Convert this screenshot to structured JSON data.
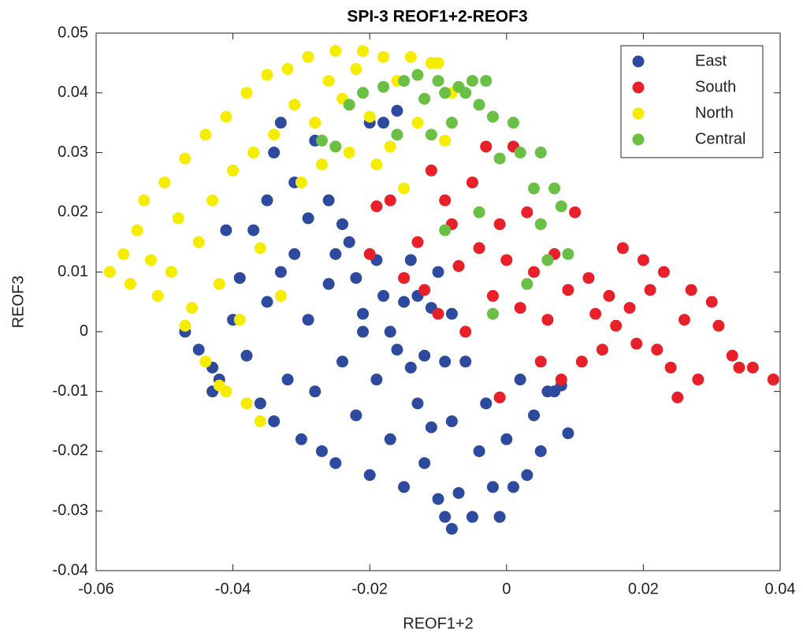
{
  "chart_data": {
    "type": "scatter",
    "title": "SPI-3 REOF1+2-REOF3",
    "x_label": "REOF1+2",
    "y_label": "REOF3",
    "xlim": [
      -0.06,
      0.04
    ],
    "ylim": [
      -0.04,
      0.05
    ],
    "xticks": [
      -0.06,
      -0.04,
      -0.02,
      0,
      0.02,
      0.04
    ],
    "yticks": [
      -0.04,
      -0.03,
      -0.02,
      -0.01,
      0,
      0.01,
      0.02,
      0.03,
      0.04,
      0.05
    ],
    "grid": false,
    "legend_position": "upper-right",
    "series": [
      {
        "name": "East",
        "color": "#2e4a9e",
        "x": [
          -0.047,
          -0.045,
          -0.043,
          -0.042,
          -0.04,
          -0.038,
          -0.036,
          -0.035,
          -0.034,
          -0.033,
          -0.032,
          -0.031,
          -0.03,
          -0.029,
          -0.028,
          -0.027,
          -0.026,
          -0.025,
          -0.024,
          -0.023,
          -0.022,
          -0.021,
          -0.02,
          -0.019,
          -0.018,
          -0.017,
          -0.016,
          -0.015,
          -0.014,
          -0.013,
          -0.012,
          -0.011,
          -0.01,
          -0.009,
          -0.008,
          -0.008,
          -0.007,
          -0.006,
          -0.005,
          -0.004,
          -0.003,
          -0.002,
          -0.001,
          0,
          0.001,
          0.002,
          0.003,
          0.004,
          0.005,
          0.006,
          0.007,
          0.008,
          0.009,
          -0.039,
          -0.037,
          -0.035,
          -0.034,
          -0.033,
          -0.031,
          -0.029,
          -0.028,
          -0.026,
          -0.025,
          -0.024,
          -0.022,
          -0.021,
          -0.02,
          -0.019,
          -0.018,
          -0.017,
          -0.016,
          -0.015,
          -0.014,
          -0.013,
          -0.012,
          -0.011,
          -0.01,
          -0.009,
          -0.008,
          -0.041,
          -0.043
        ],
        "y": [
          0,
          -0.003,
          -0.006,
          -0.008,
          0.002,
          -0.004,
          -0.012,
          0.005,
          -0.015,
          0.01,
          -0.008,
          0.013,
          -0.018,
          0.002,
          -0.01,
          -0.02,
          0.008,
          -0.022,
          -0.005,
          0.015,
          -0.014,
          0.003,
          -0.024,
          -0.008,
          0.006,
          -0.018,
          -0.003,
          -0.026,
          0.012,
          -0.012,
          -0.022,
          0.004,
          -0.028,
          -0.031,
          -0.033,
          -0.015,
          -0.027,
          -0.005,
          -0.031,
          -0.02,
          -0.012,
          -0.026,
          -0.031,
          -0.018,
          -0.026,
          -0.008,
          -0.024,
          -0.014,
          -0.02,
          -0.01,
          -0.01,
          -0.009,
          -0.017,
          0.009,
          0.017,
          0.022,
          0.03,
          0.035,
          0.025,
          0.019,
          0.032,
          0.022,
          0.013,
          0.018,
          0.009,
          0,
          0.035,
          0.012,
          0.035,
          0,
          0.037,
          0.005,
          -0.006,
          0.006,
          -0.004,
          -0.016,
          0.01,
          -0.005,
          0.003,
          0.017,
          -0.01
        ]
      },
      {
        "name": "South",
        "color": "#e8202a",
        "x": [
          -0.02,
          -0.019,
          -0.017,
          -0.015,
          -0.013,
          -0.012,
          -0.011,
          -0.01,
          -0.009,
          -0.008,
          -0.007,
          -0.006,
          -0.005,
          -0.004,
          -0.003,
          -0.002,
          -0.001,
          0,
          0.001,
          0.002,
          0.003,
          0.004,
          0.005,
          0.006,
          0.007,
          0.008,
          0.009,
          0.01,
          0.011,
          0.012,
          0.013,
          0.014,
          0.015,
          0.016,
          0.017,
          0.018,
          0.019,
          0.02,
          0.021,
          0.022,
          0.023,
          0.024,
          0.025,
          0.026,
          0.027,
          0.028,
          0.03,
          0.031,
          0.033,
          0.034,
          0.036,
          0.039,
          -0.001
        ],
        "y": [
          0.013,
          0.021,
          0.022,
          0.009,
          0.015,
          0.007,
          0.027,
          0.003,
          0.022,
          0.018,
          0.011,
          0,
          0.025,
          0.014,
          0.031,
          0.006,
          0.018,
          0.012,
          0.031,
          0.004,
          0.02,
          0.01,
          -0.005,
          0.002,
          0.013,
          -0.008,
          0.007,
          0.02,
          -0.005,
          0.009,
          0.003,
          -0.003,
          0.006,
          0.001,
          0.014,
          0.004,
          -0.002,
          0.012,
          0.007,
          -0.003,
          0.01,
          -0.006,
          -0.011,
          0.002,
          0.007,
          -0.008,
          0.005,
          0.001,
          -0.004,
          -0.006,
          -0.006,
          -0.008,
          -0.011
        ]
      },
      {
        "name": "North",
        "color": "#f5ec00",
        "x": [
          -0.058,
          -0.056,
          -0.055,
          -0.054,
          -0.053,
          -0.052,
          -0.051,
          -0.05,
          -0.049,
          -0.048,
          -0.047,
          -0.046,
          -0.045,
          -0.044,
          -0.043,
          -0.042,
          -0.041,
          -0.04,
          -0.039,
          -0.038,
          -0.037,
          -0.036,
          -0.035,
          -0.034,
          -0.033,
          -0.032,
          -0.031,
          -0.03,
          -0.029,
          -0.028,
          -0.027,
          -0.026,
          -0.025,
          -0.024,
          -0.023,
          -0.022,
          -0.021,
          -0.02,
          -0.019,
          -0.018,
          -0.017,
          -0.016,
          -0.015,
          -0.014,
          -0.013,
          -0.012,
          -0.011,
          -0.01,
          -0.041,
          -0.042,
          -0.038,
          -0.036,
          -0.044,
          -0.047,
          -0.009,
          -0.008
        ],
        "y": [
          0.01,
          0.013,
          0.008,
          0.017,
          0.022,
          0.012,
          0.006,
          0.025,
          0.01,
          0.019,
          0.029,
          0.004,
          0.015,
          0.033,
          0.022,
          0.008,
          0.036,
          0.027,
          0.002,
          0.04,
          0.03,
          0.014,
          0.043,
          0.033,
          0.006,
          0.044,
          0.038,
          0.025,
          0.046,
          0.035,
          0.028,
          0.042,
          0.047,
          0.039,
          0.03,
          0.044,
          0.047,
          0.036,
          0.028,
          0.046,
          0.031,
          0.042,
          0.024,
          0.046,
          0.035,
          0.039,
          0.045,
          0.045,
          -0.01,
          -0.009,
          -0.012,
          -0.015,
          -0.005,
          0.001,
          0.032,
          0.04
        ]
      },
      {
        "name": "Central",
        "color": "#6abf45",
        "x": [
          -0.027,
          -0.025,
          -0.023,
          -0.021,
          -0.018,
          -0.016,
          -0.015,
          -0.013,
          -0.012,
          -0.011,
          -0.01,
          -0.009,
          -0.008,
          -0.007,
          -0.006,
          -0.005,
          -0.004,
          -0.003,
          -0.002,
          -0.001,
          0.001,
          0.002,
          0.004,
          0.005,
          0.006,
          0.007,
          0.008,
          0.009,
          -0.002,
          0.003,
          -0.004,
          -0.009,
          0.005
        ],
        "y": [
          0.032,
          0.031,
          0.038,
          0.04,
          0.041,
          0.033,
          0.042,
          0.043,
          0.039,
          0.033,
          0.042,
          0.04,
          0.035,
          0.041,
          0.04,
          0.042,
          0.038,
          0.042,
          0.036,
          0.029,
          0.035,
          0.03,
          0.024,
          0.018,
          0.012,
          0.024,
          0.021,
          0.013,
          0.003,
          0.008,
          0.02,
          0.017,
          0.03
        ]
      }
    ]
  }
}
